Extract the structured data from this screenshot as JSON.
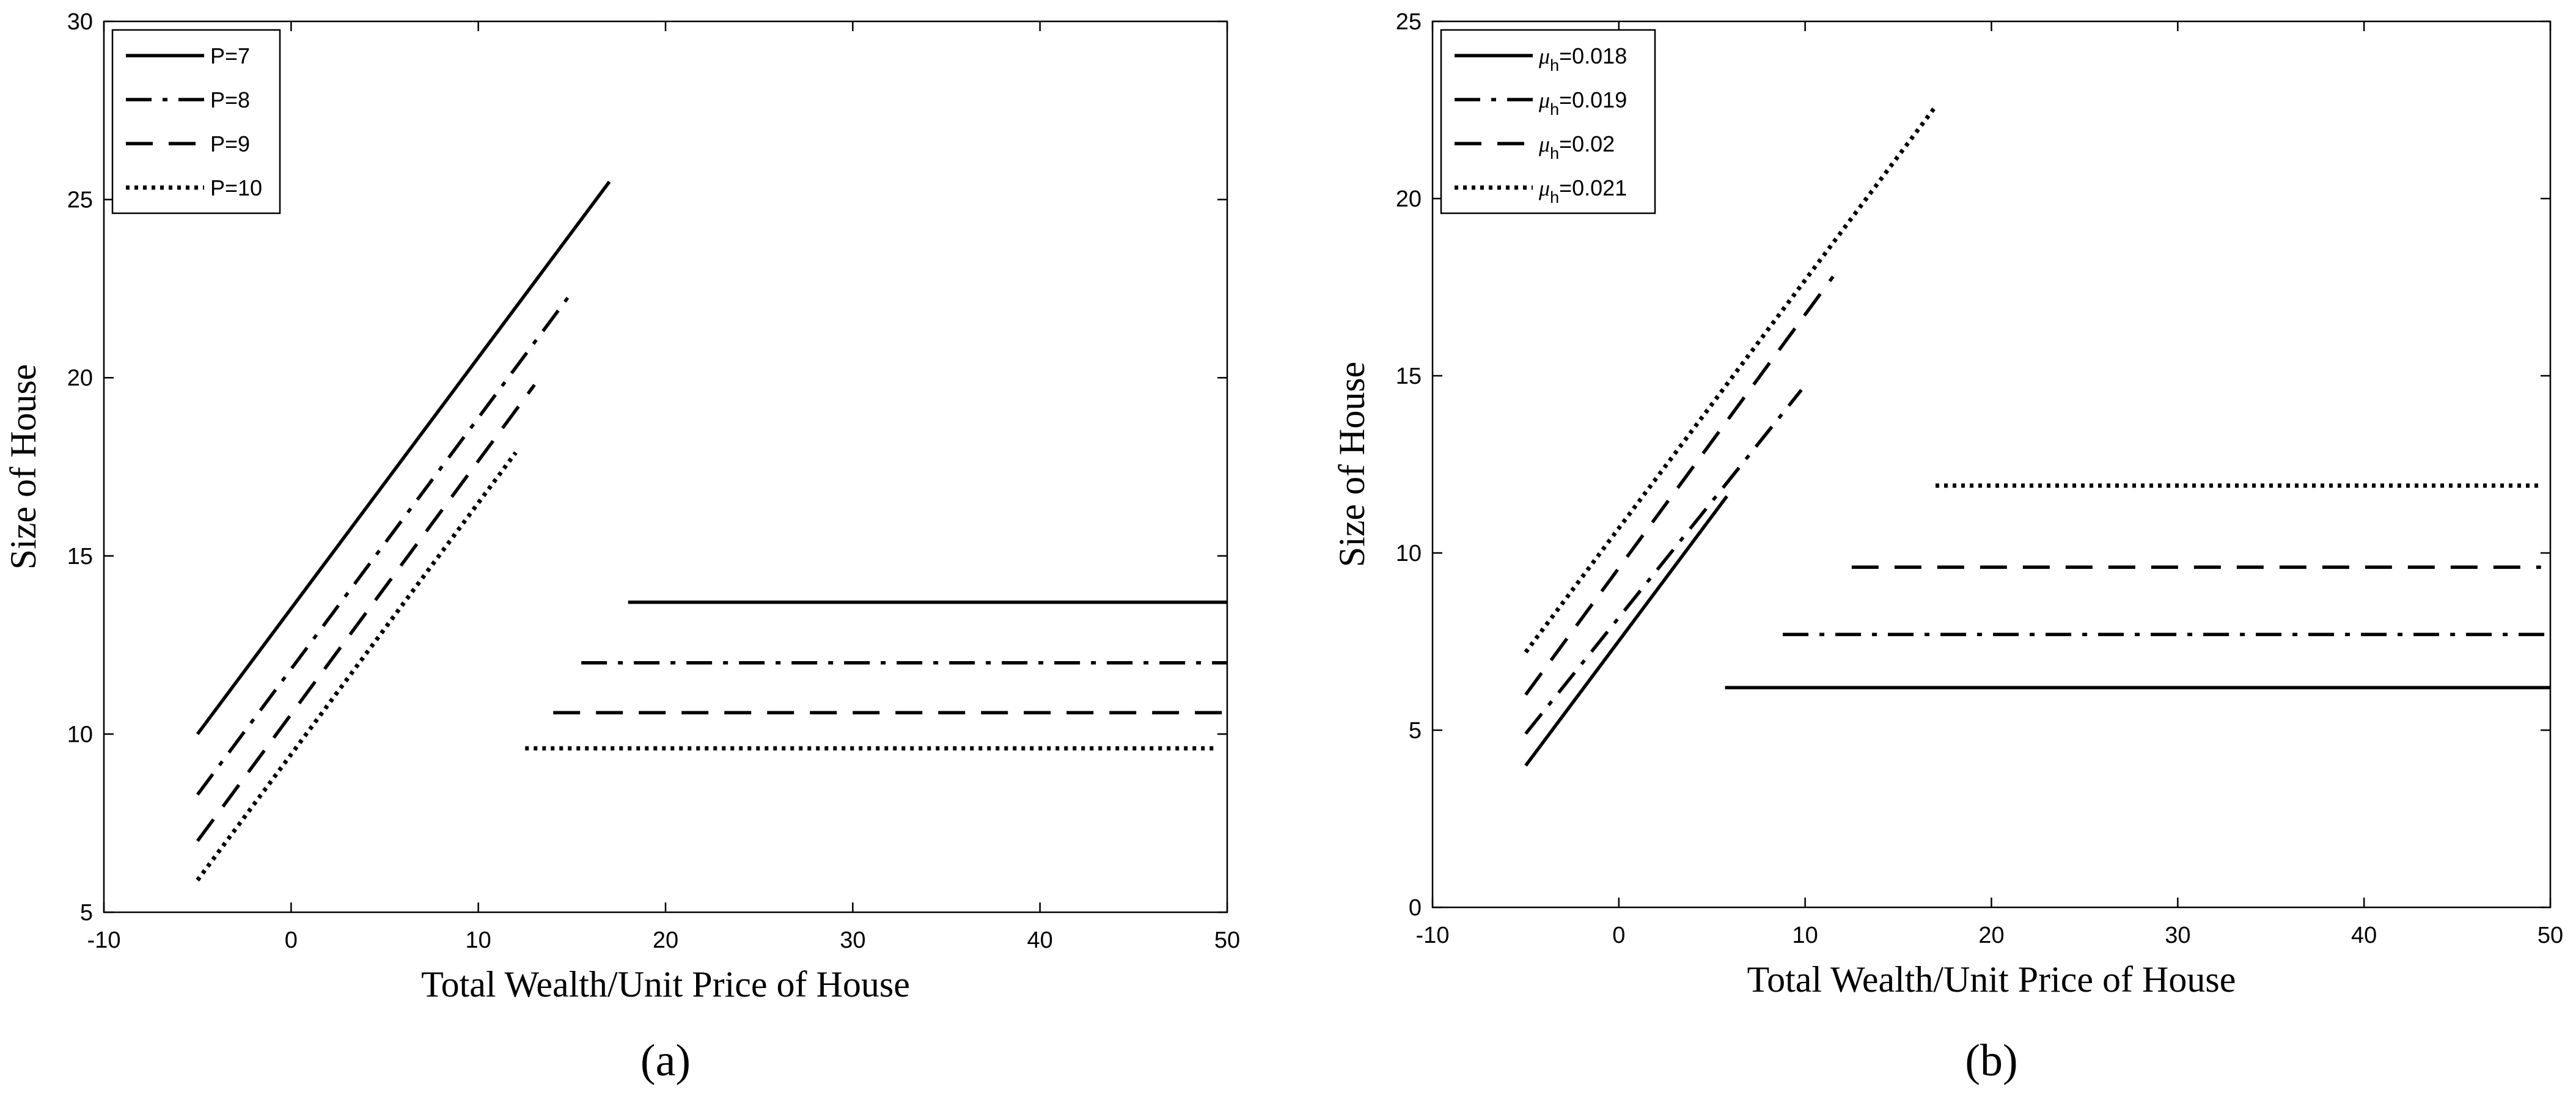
{
  "chart_data": [
    {
      "type": "line",
      "panel_label": "(a)",
      "xlabel": "Total Wealth/Unit Price of House",
      "ylabel": "Size of House",
      "xlim": [
        -10,
        50
      ],
      "ylim": [
        5,
        30
      ],
      "xticks": [
        -10,
        0,
        10,
        20,
        30,
        40,
        50
      ],
      "yticks": [
        5,
        10,
        15,
        20,
        25,
        30
      ],
      "legend_position": "top-left",
      "grid": false,
      "series": [
        {
          "name": "P=7",
          "dash": "solid",
          "segments": [
            [
              [
                -5,
                10.0
              ],
              [
                17,
                25.5
              ]
            ],
            [
              [
                18,
                13.7
              ],
              [
                50,
                13.7
              ]
            ]
          ]
        },
        {
          "name": "P=8",
          "dash": "dashdot",
          "segments": [
            [
              [
                -5,
                8.3
              ],
              [
                15,
                22.4
              ]
            ],
            [
              [
                15.5,
                12.0
              ],
              [
                50,
                12.0
              ]
            ]
          ]
        },
        {
          "name": "P=9",
          "dash": "dashed",
          "segments": [
            [
              [
                -5,
                7.0
              ],
              [
                13,
                19.8
              ]
            ],
            [
              [
                14,
                10.6
              ],
              [
                50,
                10.6
              ]
            ]
          ]
        },
        {
          "name": "P=10",
          "dash": "dotted",
          "segments": [
            [
              [
                -5,
                5.9
              ],
              [
                12,
                17.9
              ]
            ],
            [
              [
                12.5,
                9.6
              ],
              [
                49.5,
                9.6
              ]
            ]
          ]
        }
      ]
    },
    {
      "type": "line",
      "panel_label": "(b)",
      "xlabel": "Total Wealth/Unit Price of House",
      "ylabel": "Size of House",
      "xlim": [
        -10,
        50
      ],
      "ylim": [
        0,
        25
      ],
      "xticks": [
        -10,
        0,
        10,
        20,
        30,
        40,
        50
      ],
      "yticks": [
        0,
        5,
        10,
        15,
        20,
        25
      ],
      "legend_position": "top-left",
      "grid": false,
      "series": [
        {
          "name": "μh=0.018",
          "name_symbol": "μ",
          "name_sub": "h",
          "name_value": "=0.018",
          "dash": "solid",
          "segments": [
            [
              [
                -5,
                4.0
              ],
              [
                5.8,
                11.6
              ]
            ],
            [
              [
                5.7,
                6.2
              ],
              [
                50,
                6.2
              ]
            ]
          ]
        },
        {
          "name": "μh=0.019",
          "name_symbol": "μ",
          "name_sub": "h",
          "name_value": "=0.019",
          "dash": "dashdot",
          "segments": [
            [
              [
                -5,
                4.9
              ],
              [
                9.8,
                14.6
              ]
            ],
            [
              [
                8.8,
                7.7
              ],
              [
                50,
                7.7
              ]
            ]
          ]
        },
        {
          "name": "μh=0.02",
          "name_symbol": "μ",
          "name_sub": "h",
          "name_value": "=0.02",
          "dash": "dashed",
          "segments": [
            [
              [
                -5,
                6.0
              ],
              [
                11.5,
                17.8
              ]
            ],
            [
              [
                12.5,
                9.6
              ],
              [
                49.5,
                9.6
              ]
            ]
          ]
        },
        {
          "name": "μh=0.021",
          "name_symbol": "μ",
          "name_sub": "h",
          "name_value": "=0.021",
          "dash": "dotted",
          "segments": [
            [
              [
                -5,
                7.2
              ],
              [
                17,
                22.6
              ]
            ],
            [
              [
                17,
                11.9
              ],
              [
                49.5,
                11.9
              ]
            ]
          ]
        }
      ]
    }
  ]
}
